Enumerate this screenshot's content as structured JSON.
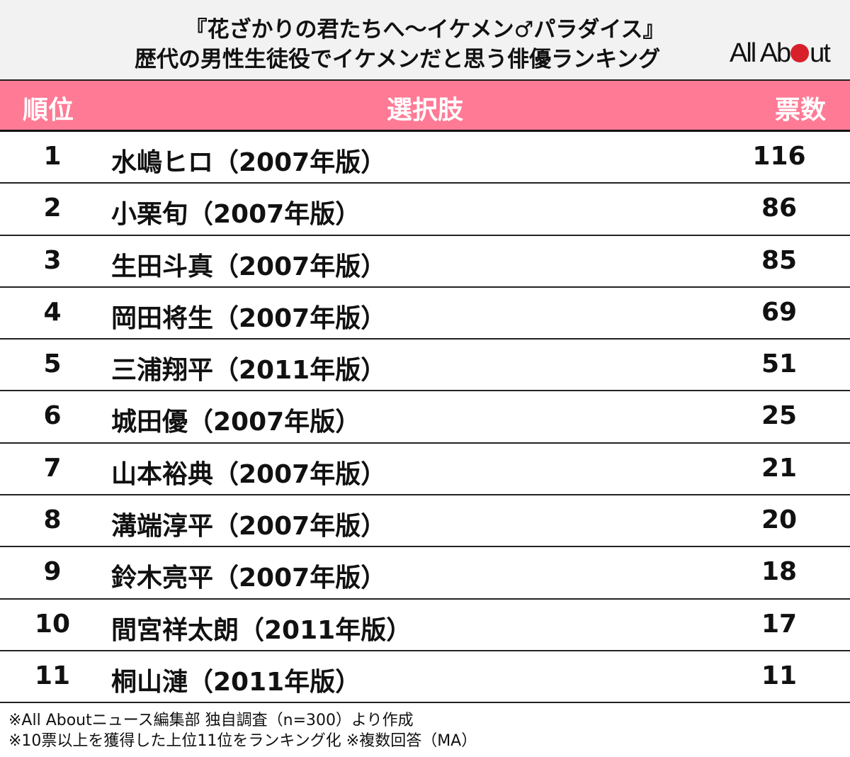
{
  "header": {
    "title_line1": "『花ざかりの君たちへ〜イケメン♂パラダイス』",
    "title_line2": "歴代の男性生徒役でイケメンだと思う俳優ランキング",
    "logo": {
      "part1": "All Ab",
      "part2": "ut",
      "dot_color": "#d8202a"
    }
  },
  "table": {
    "header_color": "#ff7a95",
    "columns": [
      "順位",
      "選択肢",
      "票数"
    ],
    "rows": [
      {
        "rank": "1",
        "name": "水嶋ヒロ（2007年版）",
        "votes": "116"
      },
      {
        "rank": "2",
        "name": "小栗旬（2007年版）",
        "votes": "86"
      },
      {
        "rank": "3",
        "name": "生田斗真（2007年版）",
        "votes": "85"
      },
      {
        "rank": "4",
        "name": "岡田将生（2007年版）",
        "votes": "69"
      },
      {
        "rank": "5",
        "name": "三浦翔平（2011年版）",
        "votes": "51"
      },
      {
        "rank": "6",
        "name": "城田優（2007年版）",
        "votes": "25"
      },
      {
        "rank": "7",
        "name": "山本裕典（2007年版）",
        "votes": "21"
      },
      {
        "rank": "8",
        "name": "溝端淳平（2007年版）",
        "votes": "20"
      },
      {
        "rank": "9",
        "name": "鈴木亮平（2007年版）",
        "votes": "18"
      },
      {
        "rank": "10",
        "name": "間宮祥太朗（2011年版）",
        "votes": "17"
      },
      {
        "rank": "11",
        "name": "桐山漣（2011年版）",
        "votes": "11"
      }
    ]
  },
  "notes": [
    "※All Aboutニュース編集部 独自調査（n=300）より作成",
    "※10票以上を獲得した上位11位をランキング化 ※複数回答（MA）"
  ],
  "chart_data": {
    "type": "table",
    "title": "『花ざかりの君たちへ〜イケメン♂パラダイス』歴代の男性生徒役でイケメンだと思う俳優ランキング",
    "columns": [
      "順位",
      "選択肢",
      "票数"
    ],
    "categories": [
      "水嶋ヒロ（2007年版）",
      "小栗旬（2007年版）",
      "生田斗真（2007年版）",
      "岡田将生（2007年版）",
      "三浦翔平（2011年版）",
      "城田優（2007年版）",
      "山本裕典（2007年版）",
      "溝端淳平（2007年版）",
      "鈴木亮平（2007年版）",
      "間宮祥太朗（2011年版）",
      "桐山漣（2011年版）"
    ],
    "values": [
      116,
      86,
      85,
      69,
      51,
      25,
      21,
      20,
      18,
      17,
      11
    ],
    "ranks": [
      1,
      2,
      3,
      4,
      5,
      6,
      7,
      8,
      9,
      10,
      11
    ],
    "annotations": [
      "※All Aboutニュース編集部 独自調査（n=300）より作成",
      "※10票以上を獲得した上位11位をランキング化 ※複数回答（MA）"
    ]
  }
}
